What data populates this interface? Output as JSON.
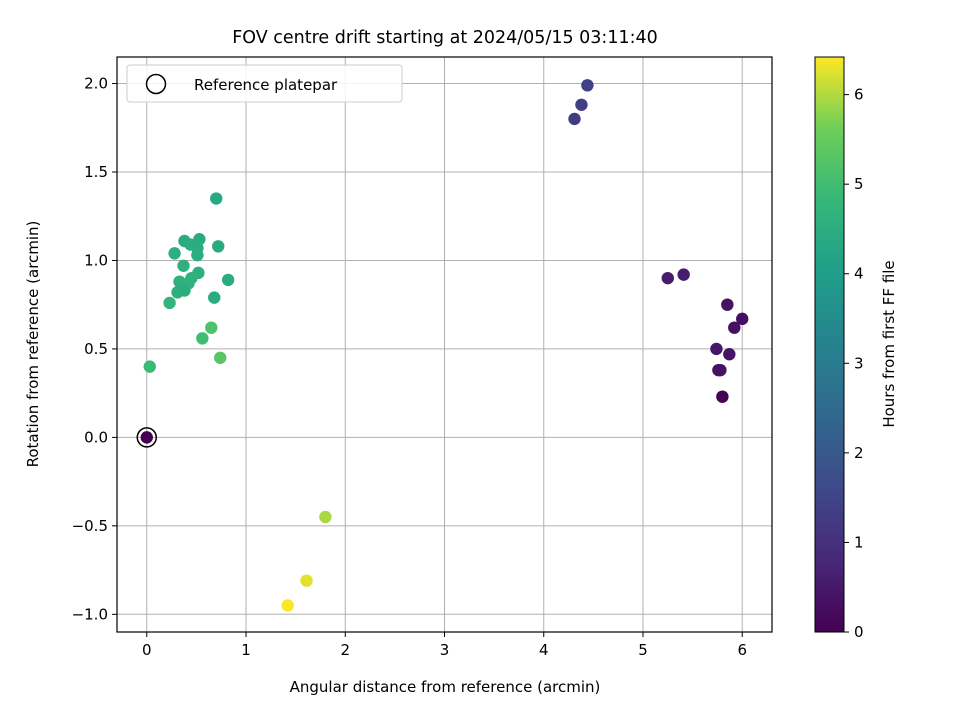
{
  "chart_data": {
    "type": "scatter",
    "title": "FOV centre drift starting at 2024/05/15 03:11:40",
    "xlabel": "Angular distance from reference (arcmin)",
    "ylabel": "Rotation from reference (arcmin)",
    "xlim": [
      -0.3,
      6.3
    ],
    "ylim": [
      -1.1,
      2.15
    ],
    "xticks": [
      0,
      1,
      2,
      3,
      4,
      5,
      6
    ],
    "yticks": [
      -1.0,
      -0.5,
      0.0,
      0.5,
      1.0,
      1.5,
      2.0
    ],
    "xtick_labels": [
      "0",
      "1",
      "2",
      "3",
      "4",
      "5",
      "6"
    ],
    "ytick_labels": [
      "−1.0",
      "−0.5",
      "0.0",
      "0.5",
      "1.0",
      "1.5",
      "2.0"
    ],
    "grid": true,
    "legend": {
      "placement": "top-left",
      "entries": [
        {
          "label": "Reference platepar",
          "marker": "open-circle"
        }
      ]
    },
    "colorbar": {
      "label": "Hours from first FF file",
      "colormap": "viridis",
      "range": [
        0,
        6.42
      ],
      "ticks": [
        0,
        1,
        2,
        3,
        4,
        5,
        6
      ],
      "tick_labels": [
        "0",
        "1",
        "2",
        "3",
        "4",
        "5",
        "6"
      ]
    },
    "reference_point": {
      "x": 0.0,
      "y": 0.0
    },
    "points": [
      {
        "x": 0.0,
        "y": 0.0,
        "hours": 0.0
      },
      {
        "x": 5.8,
        "y": 0.23,
        "hours": 0.05
      },
      {
        "x": 5.76,
        "y": 0.38,
        "hours": 0.3
      },
      {
        "x": 5.78,
        "y": 0.38,
        "hours": 0.35
      },
      {
        "x": 5.87,
        "y": 0.47,
        "hours": 0.4
      },
      {
        "x": 5.74,
        "y": 0.5,
        "hours": 0.45
      },
      {
        "x": 5.92,
        "y": 0.62,
        "hours": 0.3
      },
      {
        "x": 6.0,
        "y": 0.67,
        "hours": 0.3
      },
      {
        "x": 5.85,
        "y": 0.75,
        "hours": 0.35
      },
      {
        "x": 5.25,
        "y": 0.9,
        "hours": 0.55
      },
      {
        "x": 5.41,
        "y": 0.92,
        "hours": 0.6
      },
      {
        "x": 4.31,
        "y": 1.8,
        "hours": 1.3
      },
      {
        "x": 4.38,
        "y": 1.88,
        "hours": 1.35
      },
      {
        "x": 4.44,
        "y": 1.99,
        "hours": 1.4
      },
      {
        "x": 0.7,
        "y": 1.35,
        "hours": 4.35
      },
      {
        "x": 0.53,
        "y": 1.12,
        "hours": 4.4
      },
      {
        "x": 0.38,
        "y": 1.11,
        "hours": 4.45
      },
      {
        "x": 0.44,
        "y": 1.09,
        "hours": 4.5
      },
      {
        "x": 0.51,
        "y": 1.07,
        "hours": 4.45
      },
      {
        "x": 0.72,
        "y": 1.08,
        "hours": 4.4
      },
      {
        "x": 0.28,
        "y": 1.04,
        "hours": 4.55
      },
      {
        "x": 0.51,
        "y": 1.03,
        "hours": 4.5
      },
      {
        "x": 0.37,
        "y": 0.97,
        "hours": 4.6
      },
      {
        "x": 0.52,
        "y": 0.93,
        "hours": 4.55
      },
      {
        "x": 0.45,
        "y": 0.9,
        "hours": 4.65
      },
      {
        "x": 0.82,
        "y": 0.89,
        "hours": 4.45
      },
      {
        "x": 0.33,
        "y": 0.88,
        "hours": 4.6
      },
      {
        "x": 0.42,
        "y": 0.87,
        "hours": 4.65
      },
      {
        "x": 0.31,
        "y": 0.82,
        "hours": 4.55
      },
      {
        "x": 0.38,
        "y": 0.83,
        "hours": 4.5
      },
      {
        "x": 0.68,
        "y": 0.79,
        "hours": 4.45
      },
      {
        "x": 0.23,
        "y": 0.76,
        "hours": 4.75
      },
      {
        "x": 0.65,
        "y": 0.62,
        "hours": 5.2
      },
      {
        "x": 0.56,
        "y": 0.56,
        "hours": 5.0
      },
      {
        "x": 0.74,
        "y": 0.45,
        "hours": 5.3
      },
      {
        "x": 0.03,
        "y": 0.4,
        "hours": 4.9
      },
      {
        "x": 1.8,
        "y": -0.45,
        "hours": 5.95
      },
      {
        "x": 1.61,
        "y": -0.81,
        "hours": 6.25
      },
      {
        "x": 1.42,
        "y": -0.95,
        "hours": 6.4
      }
    ]
  }
}
